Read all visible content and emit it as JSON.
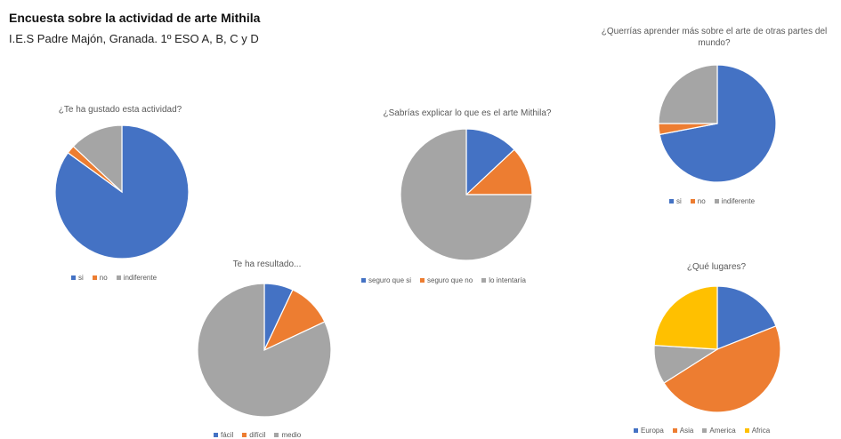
{
  "header": {
    "title": "Encuesta sobre la actividad de arte Mithila",
    "subtitle": "I.E.S Padre Majón, Granada. 1º ESO A, B, C y D"
  },
  "chart_data": [
    {
      "type": "pie",
      "title": "¿Te ha gustado esta actividad?",
      "categories": [
        "si",
        "no",
        "indiferente"
      ],
      "values": [
        85,
        2,
        13
      ],
      "colors": [
        "#4472C4",
        "#ED7D31",
        "#A5A5A5"
      ]
    },
    {
      "type": "pie",
      "title": "Te ha resultado...",
      "categories": [
        "fácil",
        "difícil",
        "medio"
      ],
      "values": [
        7,
        11,
        82
      ],
      "colors": [
        "#4472C4",
        "#ED7D31",
        "#A5A5A5"
      ]
    },
    {
      "type": "pie",
      "title": "¿Sabrías explicar lo que es el arte Mithila?",
      "categories": [
        "seguro que si",
        "seguro que no",
        "lo intentaría"
      ],
      "values": [
        13,
        12,
        75
      ],
      "colors": [
        "#4472C4",
        "#ED7D31",
        "#A5A5A5"
      ]
    },
    {
      "type": "pie",
      "title": "¿Querrías aprender más sobre el arte de otras partes del mundo?",
      "categories": [
        "si",
        "no",
        "indiferente"
      ],
      "values": [
        72,
        3,
        25
      ],
      "colors": [
        "#4472C4",
        "#ED7D31",
        "#A5A5A5"
      ]
    },
    {
      "type": "pie",
      "title": "¿Qué lugares?",
      "categories": [
        "Europa",
        "Asia",
        "America",
        "Africa"
      ],
      "values": [
        19,
        47,
        10,
        24
      ],
      "colors": [
        "#4472C4",
        "#ED7D31",
        "#A5A5A5",
        "#FFC000"
      ]
    }
  ]
}
